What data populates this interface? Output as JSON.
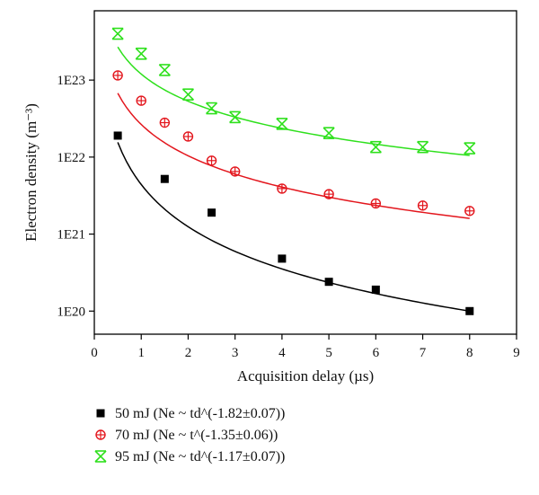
{
  "chart_data": {
    "type": "scatter",
    "xlabel": "Acquisition delay (µs)",
    "ylabel": "Electron density (m⁻³)",
    "xlim": [
      0,
      9
    ],
    "ylim": [
      5e+19,
      8e+23
    ],
    "yscale": "log",
    "x_ticks": [
      "0",
      "1",
      "2",
      "3",
      "4",
      "5",
      "6",
      "7",
      "8",
      "9"
    ],
    "y_ticks": [
      "1E20",
      "1E21",
      "1E22",
      "1E23"
    ],
    "legend_position": "below",
    "series": [
      {
        "name": "50 mJ",
        "fit_label": "(Ne ~ td^(-1.82±0.07))",
        "marker": "square",
        "color": "#000000",
        "x": [
          0.5,
          1.5,
          2.5,
          4,
          5,
          6,
          8
        ],
        "y": [
          1.9e+22,
          5.2e+21,
          1.9e+21,
          4.8e+20,
          2.4e+20,
          1.9e+20,
          1e+20
        ],
        "fit": {
          "exponent": -1.82,
          "x_range": [
            0.5,
            8
          ],
          "y_at_8": 1e+20
        }
      },
      {
        "name": "70 mJ",
        "fit_label": "(Ne ~ t^(-1.35±0.06))",
        "marker": "circle-plus",
        "color": "#e3161d",
        "x": [
          0.5,
          1,
          1.5,
          2,
          2.5,
          3,
          4,
          5,
          6,
          7,
          8
        ],
        "y": [
          1.15e+23,
          5.4e+22,
          2.8e+22,
          1.85e+22,
          9e+21,
          6.5e+21,
          3.9e+21,
          3.3e+21,
          2.5e+21,
          2.35e+21,
          2e+21
        ],
        "fit": {
          "exponent": -1.35,
          "x_range": [
            0.5,
            8
          ],
          "y_at_8": 1.6e+21
        }
      },
      {
        "name": "95 mJ",
        "fit_label": "(Ne ~ td^(-1.17±0.07))",
        "marker": "hourglass-x",
        "color": "#2ee01c",
        "x": [
          0.5,
          1,
          1.5,
          2,
          2.5,
          3,
          4,
          5,
          6,
          7,
          8
        ],
        "y": [
          4e+23,
          2.2e+23,
          1.35e+23,
          6.5e+22,
          4.3e+22,
          3.3e+22,
          2.7e+22,
          2.05e+22,
          1.35e+22,
          1.35e+22,
          1.3e+22
        ],
        "fit": {
          "exponent": -1.17,
          "x_range": [
            0.5,
            8
          ],
          "y_at_8": 1.05e+22
        }
      }
    ]
  }
}
